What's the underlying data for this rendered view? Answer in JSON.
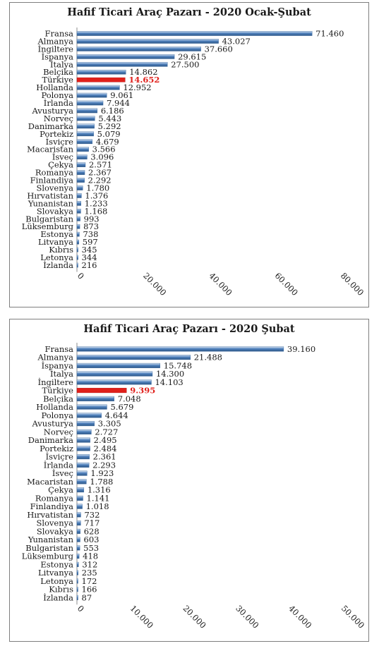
{
  "chart_data": [
    {
      "type": "bar",
      "orientation": "horizontal",
      "title": "Hafif Ticari Araç Pazarı - 2020 Ocak-Şubat",
      "xlim": [
        0,
        80000
      ],
      "xticks": [
        0,
        20000,
        40000,
        60000,
        80000
      ],
      "xtick_labels": [
        "0",
        "20.000",
        "40.000",
        "60.000",
        "80.000"
      ],
      "categories": [
        "Fransa",
        "Almanya",
        "İngiltere",
        "İspanya",
        "İtalya",
        "Belçika",
        "Türkiye",
        "Hollanda",
        "Polonya",
        "İrlanda",
        "Avusturya",
        "Norveç",
        "Danimarka",
        "Portekiz",
        "İsviçre",
        "Macaristan",
        "İsveç",
        "Çekya",
        "Romanya",
        "Finlandiya",
        "Slovenya",
        "Hırvatistan",
        "Yunanistan",
        "Slovakya",
        "Bulgaristan",
        "Lüksemburg",
        "Estonya",
        "Litvanya",
        "Kıbrıs",
        "Letonya",
        "İzlanda"
      ],
      "values": [
        71460,
        43027,
        37660,
        29615,
        27500,
        14862,
        14652,
        12952,
        9061,
        7944,
        6186,
        5443,
        5292,
        5079,
        4679,
        3566,
        3096,
        2571,
        2367,
        2292,
        1780,
        1376,
        1233,
        1168,
        993,
        873,
        738,
        597,
        345,
        344,
        216
      ],
      "value_labels": [
        "71.460",
        "43.027",
        "37.660",
        "29.615",
        "27.500",
        "14.862",
        "14.652",
        "12.952",
        "9.061",
        "7.944",
        "6.186",
        "5.443",
        "5.292",
        "5.079",
        "4.679",
        "3.566",
        "3.096",
        "2.571",
        "2.367",
        "2.292",
        "1.780",
        "1.376",
        "1.233",
        "1.168",
        "993",
        "873",
        "738",
        "597",
        "345",
        "344",
        "216"
      ],
      "highlight": "Türkiye",
      "bar_color": "#4f81bd",
      "highlight_color": "#e0201b",
      "grid": false,
      "legend": false
    },
    {
      "type": "bar",
      "orientation": "horizontal",
      "title": "Hafif Ticari Araç Pazarı - 2020 Şubat",
      "xlim": [
        0,
        50000
      ],
      "xticks": [
        0,
        10000,
        20000,
        30000,
        40000,
        50000
      ],
      "xtick_labels": [
        "0",
        "10.000",
        "20.000",
        "30.000",
        "40.000",
        "50.000"
      ],
      "categories": [
        "Fransa",
        "Almanya",
        "İspanya",
        "İtalya",
        "İngiltere",
        "Türkiye",
        "Belçika",
        "Hollanda",
        "Polonya",
        "Avusturya",
        "Norveç",
        "Danimarka",
        "Portekiz",
        "İsviçre",
        "İrlanda",
        "İsveç",
        "Macaristan",
        "Çekya",
        "Romanya",
        "Finlandiya",
        "Hırvatistan",
        "Slovenya",
        "Slovakya",
        "Yunanistan",
        "Bulgaristan",
        "Lüksemburg",
        "Estonya",
        "Litvanya",
        "Letonya",
        "Kıbrıs",
        "İzlanda"
      ],
      "values": [
        39160,
        21488,
        15748,
        14300,
        14103,
        9395,
        7048,
        5679,
        4644,
        3305,
        2727,
        2495,
        2484,
        2361,
        2293,
        1923,
        1788,
        1316,
        1141,
        1018,
        732,
        717,
        628,
        603,
        553,
        418,
        312,
        235,
        172,
        166,
        87
      ],
      "value_labels": [
        "39.160",
        "21.488",
        "15.748",
        "14.300",
        "14.103",
        "9.395",
        "7.048",
        "5.679",
        "4.644",
        "3.305",
        "2.727",
        "2.495",
        "2.484",
        "2.361",
        "2.293",
        "1.923",
        "1.788",
        "1.316",
        "1.141",
        "1.018",
        "732",
        "717",
        "628",
        "603",
        "553",
        "418",
        "312",
        "235",
        "172",
        "166",
        "87"
      ],
      "highlight": "Türkiye",
      "bar_color": "#4f81bd",
      "highlight_color": "#e0201b",
      "grid": false,
      "legend": false
    }
  ]
}
